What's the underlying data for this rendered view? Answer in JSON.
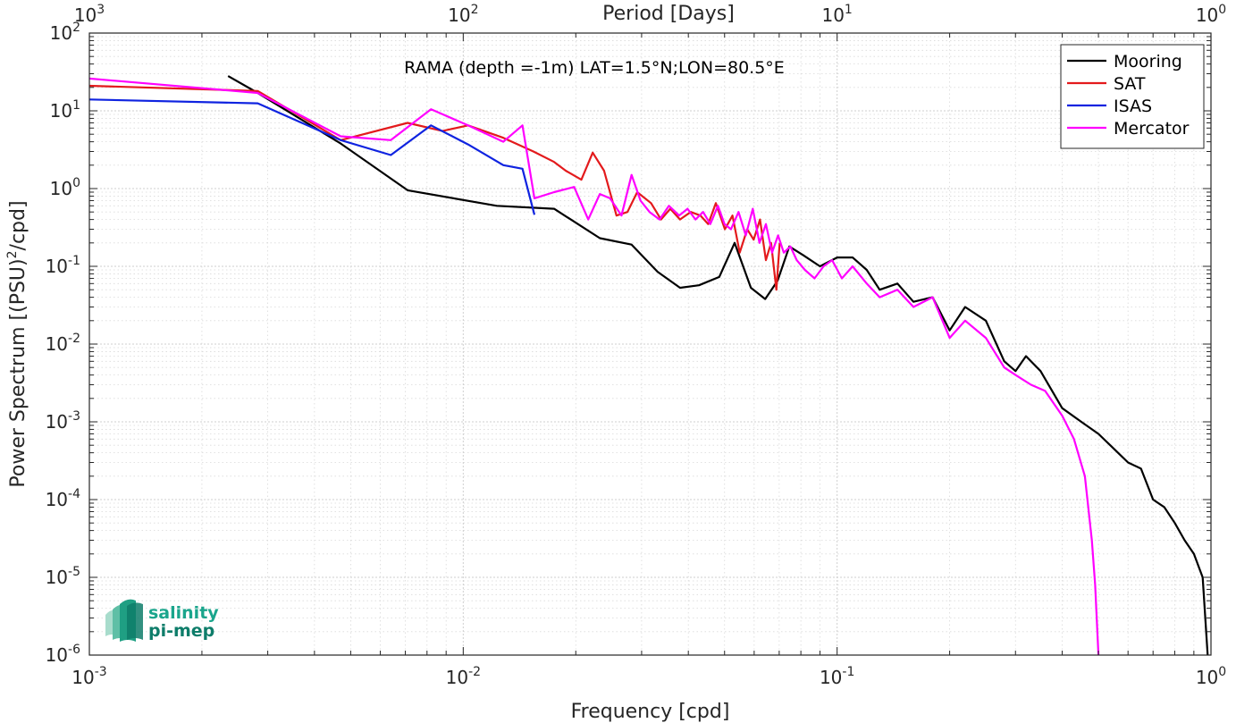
{
  "chart_data": {
    "type": "line",
    "title": "RAMA (depth =-1m) LAT=1.5°N;LON=80.5°E",
    "xlabel": "Frequency [cpd]",
    "ylabel": "Power Spectrum [(PSU)²/cpd]",
    "ylabel_parts": {
      "pre": "Power Spectrum [(PSU)",
      "sup": "2",
      "post": "/cpd]"
    },
    "x2label": "Period [Days]",
    "x_scale": "log",
    "y_scale": "log",
    "xlim": [
      0.001,
      1
    ],
    "ylim": [
      1e-06,
      100
    ],
    "grid": true,
    "legend_position": "top-right",
    "x_ticks": [
      {
        "base": "10",
        "exp": "-3"
      },
      {
        "base": "10",
        "exp": "-2"
      },
      {
        "base": "10",
        "exp": "-1"
      },
      {
        "base": "10",
        "exp": "0"
      }
    ],
    "x2_ticks": [
      {
        "base": "10",
        "exp": "3"
      },
      {
        "base": "10",
        "exp": "2"
      },
      {
        "base": "10",
        "exp": "1"
      },
      {
        "base": "10",
        "exp": "0"
      }
    ],
    "y_ticks": [
      {
        "base": "10",
        "exp": "2"
      },
      {
        "base": "10",
        "exp": "1"
      },
      {
        "base": "10",
        "exp": "0"
      },
      {
        "base": "10",
        "exp": "-1"
      },
      {
        "base": "10",
        "exp": "-2"
      },
      {
        "base": "10",
        "exp": "-3"
      },
      {
        "base": "10",
        "exp": "-4"
      },
      {
        "base": "10",
        "exp": "-5"
      },
      {
        "base": "10",
        "exp": "-6"
      }
    ],
    "series": [
      {
        "name": "Mooring",
        "color": "#000000",
        "x": [
          0.00235,
          0.00282,
          0.0047,
          0.0071,
          0.0123,
          0.0175,
          0.0232,
          0.0282,
          0.0331,
          0.038,
          0.0427,
          0.0484,
          0.0532,
          0.0588,
          0.0642,
          0.0693,
          0.0745,
          0.081,
          0.09,
          0.1,
          0.11,
          0.12,
          0.13,
          0.145,
          0.16,
          0.18,
          0.2,
          0.22,
          0.25,
          0.28,
          0.3,
          0.32,
          0.35,
          0.4,
          0.45,
          0.5,
          0.55,
          0.6,
          0.65,
          0.7,
          0.75,
          0.8,
          0.85,
          0.9,
          0.95,
          0.98
        ],
        "y": [
          28,
          17,
          3.8,
          0.95,
          0.6,
          0.55,
          0.23,
          0.19,
          0.085,
          0.053,
          0.057,
          0.073,
          0.2,
          0.053,
          0.038,
          0.065,
          0.18,
          0.14,
          0.1,
          0.13,
          0.13,
          0.09,
          0.05,
          0.06,
          0.035,
          0.04,
          0.015,
          0.03,
          0.02,
          0.006,
          0.0045,
          0.007,
          0.0045,
          0.0015,
          0.001,
          0.0007,
          0.00045,
          0.0003,
          0.00025,
          0.0001,
          8e-05,
          5e-05,
          3e-05,
          2e-05,
          1e-05,
          1e-06
        ]
      },
      {
        "name": "SAT",
        "color": "#e31a1c",
        "x": [
          0.001,
          0.00282,
          0.0047,
          0.0071,
          0.0088,
          0.0103,
          0.0128,
          0.0154,
          0.0175,
          0.0188,
          0.0207,
          0.0222,
          0.0238,
          0.0257,
          0.0275,
          0.0292,
          0.0318,
          0.0338,
          0.0358,
          0.038,
          0.0406,
          0.0431,
          0.0452,
          0.0474,
          0.0501,
          0.0525,
          0.0549,
          0.0575,
          0.0598,
          0.0622,
          0.0645,
          0.0666,
          0.0688,
          0.0702
        ],
        "y": [
          21,
          18,
          4.2,
          7,
          5.5,
          6.5,
          4.5,
          3,
          2.2,
          1.7,
          1.3,
          2.9,
          1.7,
          0.45,
          0.5,
          0.9,
          0.65,
          0.4,
          0.55,
          0.4,
          0.5,
          0.45,
          0.35,
          0.65,
          0.3,
          0.45,
          0.15,
          0.3,
          0.22,
          0.4,
          0.12,
          0.2,
          0.05,
          0.2
        ]
      },
      {
        "name": "ISAS",
        "color": "#0f23e0",
        "x": [
          0.001,
          0.00282,
          0.0047,
          0.0064,
          0.0082,
          0.0103,
          0.0128,
          0.0144,
          0.0155
        ],
        "y": [
          14,
          12.5,
          4.2,
          2.7,
          6.5,
          3.7,
          2,
          1.8,
          0.46
        ]
      },
      {
        "name": "Mercator",
        "color": "#ff00ff",
        "x": [
          0.001,
          0.00282,
          0.0047,
          0.0064,
          0.0082,
          0.0103,
          0.0128,
          0.0144,
          0.0155,
          0.0175,
          0.0198,
          0.0216,
          0.0232,
          0.0247,
          0.0265,
          0.0282,
          0.0298,
          0.0315,
          0.0335,
          0.0355,
          0.0378,
          0.0398,
          0.0418,
          0.0438,
          0.0458,
          0.048,
          0.05,
          0.052,
          0.0545,
          0.057,
          0.0595,
          0.062,
          0.0645,
          0.067,
          0.0695,
          0.072,
          0.075,
          0.078,
          0.082,
          0.087,
          0.092,
          0.097,
          0.103,
          0.11,
          0.12,
          0.13,
          0.145,
          0.16,
          0.18,
          0.2,
          0.22,
          0.25,
          0.28,
          0.3,
          0.33,
          0.36,
          0.4,
          0.43,
          0.46,
          0.48,
          0.49,
          0.5
        ],
        "y": [
          26,
          17,
          4.7,
          4.2,
          10.5,
          6.5,
          4,
          6.5,
          0.75,
          0.9,
          1.05,
          0.4,
          0.85,
          0.75,
          0.45,
          1.5,
          0.7,
          0.5,
          0.4,
          0.6,
          0.45,
          0.55,
          0.4,
          0.5,
          0.35,
          0.6,
          0.35,
          0.3,
          0.5,
          0.25,
          0.55,
          0.2,
          0.35,
          0.15,
          0.25,
          0.15,
          0.18,
          0.12,
          0.09,
          0.07,
          0.1,
          0.12,
          0.07,
          0.1,
          0.06,
          0.04,
          0.05,
          0.03,
          0.04,
          0.012,
          0.02,
          0.012,
          0.005,
          0.004,
          0.003,
          0.0025,
          0.0012,
          0.0006,
          0.0002,
          3e-05,
          8e-06,
          1e-06
        ]
      }
    ],
    "logo": {
      "line1": "salinity",
      "line2": "pi-mep"
    }
  }
}
